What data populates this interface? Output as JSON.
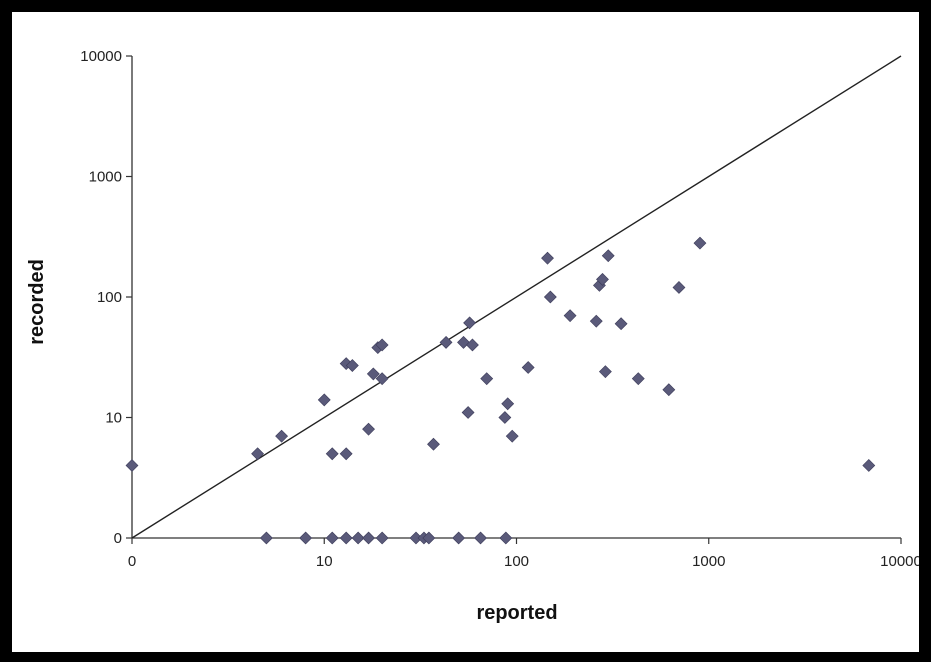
{
  "chart_data": {
    "type": "scatter",
    "xlabel": "reported",
    "ylabel": "recorded",
    "x_scale": "log",
    "y_scale": "log",
    "xlim": [
      1,
      10000
    ],
    "ylim": [
      1,
      10000
    ],
    "x_ticks": [
      {
        "value": 1,
        "label": "0"
      },
      {
        "value": 10,
        "label": "10"
      },
      {
        "value": 100,
        "label": "100"
      },
      {
        "value": 1000,
        "label": "1000"
      },
      {
        "value": 10000,
        "label": "10000"
      }
    ],
    "y_ticks": [
      {
        "value": 1,
        "label": "0"
      },
      {
        "value": 10,
        "label": "10"
      },
      {
        "value": 100,
        "label": "100"
      },
      {
        "value": 1000,
        "label": "1000"
      },
      {
        "value": 10000,
        "label": "10000"
      }
    ],
    "reference_line": {
      "from": [
        1,
        1
      ],
      "to": [
        10000,
        10000
      ]
    },
    "grid": false,
    "marker_color": "#5a5a7a",
    "line_color": "#222222",
    "points": [
      [
        1,
        4
      ],
      [
        4.5,
        5
      ],
      [
        6,
        7
      ],
      [
        10,
        14
      ],
      [
        11,
        5
      ],
      [
        13,
        5
      ],
      [
        13,
        28
      ],
      [
        14,
        27
      ],
      [
        17,
        8
      ],
      [
        18,
        23
      ],
      [
        19,
        38
      ],
      [
        20,
        40
      ],
      [
        20,
        21
      ],
      [
        37,
        6
      ],
      [
        43,
        42
      ],
      [
        53,
        42
      ],
      [
        57,
        61
      ],
      [
        59,
        40
      ],
      [
        56,
        11
      ],
      [
        70,
        21
      ],
      [
        87,
        10
      ],
      [
        90,
        13
      ],
      [
        95,
        7
      ],
      [
        115,
        26
      ],
      [
        145,
        210
      ],
      [
        150,
        100
      ],
      [
        190,
        70
      ],
      [
        260,
        63
      ],
      [
        270,
        125
      ],
      [
        280,
        140
      ],
      [
        290,
        24
      ],
      [
        300,
        220
      ],
      [
        350,
        60
      ],
      [
        430,
        21
      ],
      [
        620,
        17
      ],
      [
        700,
        120
      ],
      [
        900,
        280
      ],
      [
        6800,
        4
      ],
      [
        5,
        1
      ],
      [
        8,
        1
      ],
      [
        11,
        1
      ],
      [
        13,
        1
      ],
      [
        15,
        1
      ],
      [
        17,
        1
      ],
      [
        20,
        1
      ],
      [
        30,
        1
      ],
      [
        33,
        1
      ],
      [
        35,
        1
      ],
      [
        50,
        1
      ],
      [
        65,
        1
      ],
      [
        88,
        1
      ]
    ]
  }
}
